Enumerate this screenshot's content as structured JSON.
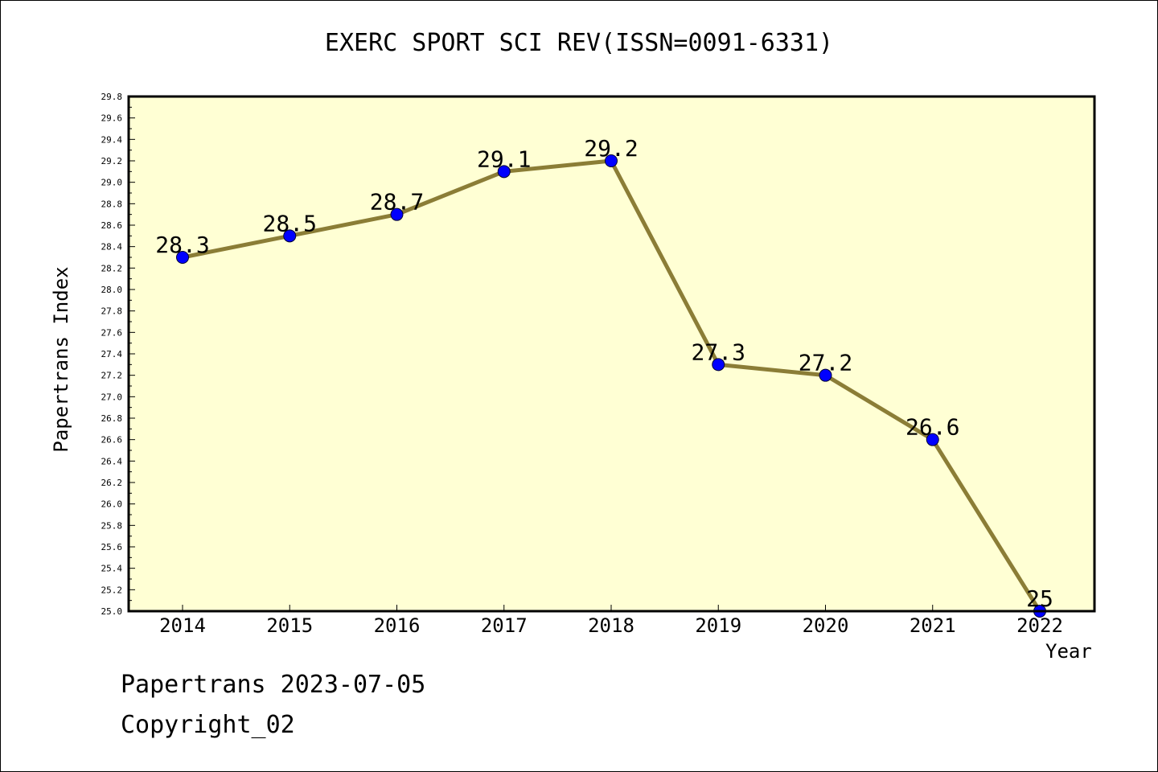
{
  "chart_data": {
    "type": "line",
    "title": "EXERC SPORT SCI REV(ISSN=0091-6331)",
    "xlabel": "Year",
    "ylabel": "Papertrans Index",
    "categories": [
      "2014",
      "2015",
      "2016",
      "2017",
      "2018",
      "2019",
      "2020",
      "2021",
      "2022"
    ],
    "series": [
      {
        "values": [
          28.3,
          28.5,
          28.7,
          29.1,
          29.2,
          27.3,
          27.2,
          26.6,
          25
        ],
        "data_labels": [
          "28.3",
          "28.5",
          "28.7",
          "29.1",
          "29.2",
          "27.3",
          "27.2",
          "26.6",
          "25"
        ],
        "line_color": "#8b7d36",
        "marker_color": "#0000ff"
      }
    ],
    "ylim": [
      25.0,
      29.8
    ],
    "yticks": [
      "25.0",
      "25.2",
      "25.4",
      "25.6",
      "25.8",
      "26.0",
      "26.2",
      "26.4",
      "26.6",
      "26.8",
      "27.0",
      "27.2",
      "27.4",
      "27.6",
      "27.8",
      "28.0",
      "28.2",
      "28.4",
      "28.6",
      "28.8",
      "29.0",
      "29.2",
      "29.4",
      "29.6",
      "29.8"
    ],
    "plot_background": "#ffffd4",
    "grid": false,
    "legend": "none"
  },
  "footer": {
    "line1": "Papertrans 2023-07-05",
    "line2": "Copyright_02"
  }
}
